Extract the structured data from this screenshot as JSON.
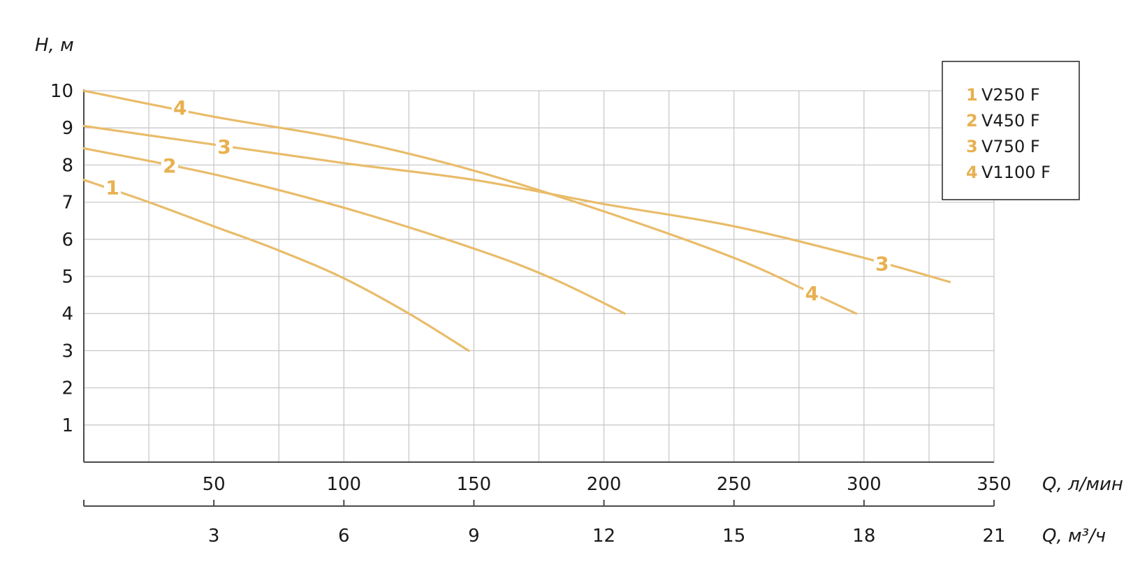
{
  "chart_data": {
    "type": "line",
    "title": "",
    "ylabel": "H, м",
    "xlabel": "Q, л/мин",
    "x2label": "Q, м³/ч",
    "xlim": [
      0,
      350
    ],
    "ylim": [
      0,
      10
    ],
    "x_ticks": [
      "50",
      "100",
      "150",
      "200",
      "250",
      "300",
      "350"
    ],
    "x2_ticks": [
      "3",
      "6",
      "9",
      "12",
      "15",
      "18",
      "21"
    ],
    "y_ticks": [
      "1",
      "2",
      "3",
      "4",
      "5",
      "6",
      "7",
      "8",
      "9",
      "10"
    ],
    "grid": true,
    "legend_position": "top-right",
    "line_color": "#e9bc6a",
    "label_color": "#e8b04f",
    "series": [
      {
        "num": "1",
        "name": "V250 F",
        "points": [
          [
            0,
            7.6
          ],
          [
            25,
            7.0
          ],
          [
            50,
            6.35
          ],
          [
            75,
            5.7
          ],
          [
            100,
            4.95
          ],
          [
            125,
            4.0
          ],
          [
            148,
            3.0
          ]
        ],
        "label_at": [
          11,
          7.4
        ]
      },
      {
        "num": "2",
        "name": "V450 F",
        "points": [
          [
            0,
            8.45
          ],
          [
            50,
            7.75
          ],
          [
            100,
            6.85
          ],
          [
            150,
            5.75
          ],
          [
            180,
            4.95
          ],
          [
            208,
            4.0
          ]
        ],
        "label_at": [
          33,
          7.99
        ]
      },
      {
        "num": "3",
        "name": "V750 F",
        "points": [
          [
            0,
            9.05
          ],
          [
            50,
            8.55
          ],
          [
            100,
            8.05
          ],
          [
            150,
            7.6
          ],
          [
            200,
            6.95
          ],
          [
            250,
            6.35
          ],
          [
            300,
            5.5
          ],
          [
            333,
            4.85
          ]
        ],
        "label_at": [
          54,
          8.5
        ]
      },
      {
        "num": "4",
        "name": "V1100 F",
        "points": [
          [
            0,
            10.0
          ],
          [
            50,
            9.3
          ],
          [
            100,
            8.7
          ],
          [
            150,
            7.85
          ],
          [
            200,
            6.75
          ],
          [
            250,
            5.5
          ],
          [
            280,
            4.55
          ],
          [
            297,
            4.0
          ]
        ],
        "label_at": [
          37,
          9.55
        ]
      }
    ],
    "curve_labels_second": [
      {
        "num": "3",
        "at": [
          307,
          5.35
        ]
      },
      {
        "num": "4",
        "at": [
          280,
          4.55
        ]
      }
    ]
  }
}
